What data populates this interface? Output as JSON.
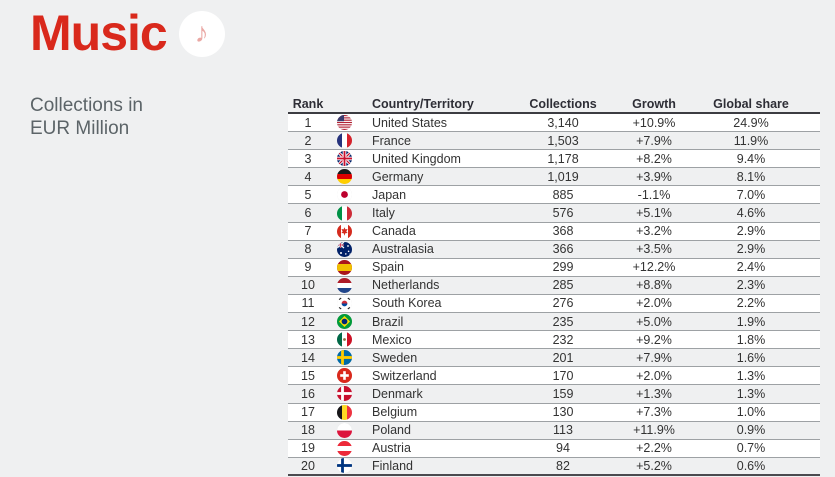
{
  "header": {
    "title": "Music",
    "icon": "music-note-icon",
    "icon_glyph": "♪",
    "subtitle_line1": "Collections in",
    "subtitle_line2": "EUR Million"
  },
  "colors": {
    "accent_red": "#D9291C",
    "page_background": "#EFF0F1",
    "row_highlight": "#FFFFFF",
    "header_text": "#2E2E36",
    "body_text": "#333333",
    "subtitle_text": "#5C6468",
    "note_icon_pink": "#EAA8A4",
    "row_divider": "#9DA1A4"
  },
  "chart_data": {
    "type": "table",
    "title": "Music",
    "subtitle": "Collections in EUR Million",
    "columns": [
      "Rank",
      "Country/Territory",
      "Collections",
      "Growth",
      "Global share"
    ],
    "rows": [
      {
        "rank": "1",
        "flag": "us",
        "country": "United States",
        "collections": "3,140",
        "growth": "+10.9%",
        "share": "24.9%"
      },
      {
        "rank": "2",
        "flag": "fr",
        "country": "France",
        "collections": "1,503",
        "growth": "+7.9%",
        "share": "11.9%"
      },
      {
        "rank": "3",
        "flag": "gb",
        "country": "United Kingdom",
        "collections": "1,178",
        "growth": "+8.2%",
        "share": "9.4%"
      },
      {
        "rank": "4",
        "flag": "de",
        "country": "Germany",
        "collections": "1,019",
        "growth": "+3.9%",
        "share": "8.1%"
      },
      {
        "rank": "5",
        "flag": "jp",
        "country": "Japan",
        "collections": "885",
        "growth": "-1.1%",
        "share": "7.0%"
      },
      {
        "rank": "6",
        "flag": "it",
        "country": "Italy",
        "collections": "576",
        "growth": "+5.1%",
        "share": "4.6%"
      },
      {
        "rank": "7",
        "flag": "ca",
        "country": "Canada",
        "collections": "368",
        "growth": "+3.2%",
        "share": "2.9%"
      },
      {
        "rank": "8",
        "flag": "au",
        "country": "Australasia",
        "collections": "366",
        "growth": "+3.5%",
        "share": "2.9%"
      },
      {
        "rank": "9",
        "flag": "es",
        "country": "Spain",
        "collections": "299",
        "growth": "+12.2%",
        "share": "2.4%"
      },
      {
        "rank": "10",
        "flag": "nl",
        "country": "Netherlands",
        "collections": "285",
        "growth": "+8.8%",
        "share": "2.3%"
      },
      {
        "rank": "11",
        "flag": "kr",
        "country": "South Korea",
        "collections": "276",
        "growth": "+2.0%",
        "share": "2.2%"
      },
      {
        "rank": "12",
        "flag": "br",
        "country": "Brazil",
        "collections": "235",
        "growth": "+5.0%",
        "share": "1.9%"
      },
      {
        "rank": "13",
        "flag": "mx",
        "country": "Mexico",
        "collections": "232",
        "growth": "+9.2%",
        "share": "1.8%"
      },
      {
        "rank": "14",
        "flag": "se",
        "country": "Sweden",
        "collections": "201",
        "growth": "+7.9%",
        "share": "1.6%"
      },
      {
        "rank": "15",
        "flag": "ch",
        "country": "Switzerland",
        "collections": "170",
        "growth": "+2.0%",
        "share": "1.3%"
      },
      {
        "rank": "16",
        "flag": "dk",
        "country": "Denmark",
        "collections": "159",
        "growth": "+1.3%",
        "share": "1.3%"
      },
      {
        "rank": "17",
        "flag": "be",
        "country": "Belgium",
        "collections": "130",
        "growth": "+7.3%",
        "share": "1.0%"
      },
      {
        "rank": "18",
        "flag": "pl",
        "country": "Poland",
        "collections": "113",
        "growth": "+11.9%",
        "share": "0.9%"
      },
      {
        "rank": "19",
        "flag": "at",
        "country": "Austria",
        "collections": "94",
        "growth": "+2.2%",
        "share": "0.7%"
      },
      {
        "rank": "20",
        "flag": "fi",
        "country": "Finland",
        "collections": "82",
        "growth": "+5.2%",
        "share": "0.6%"
      }
    ]
  }
}
